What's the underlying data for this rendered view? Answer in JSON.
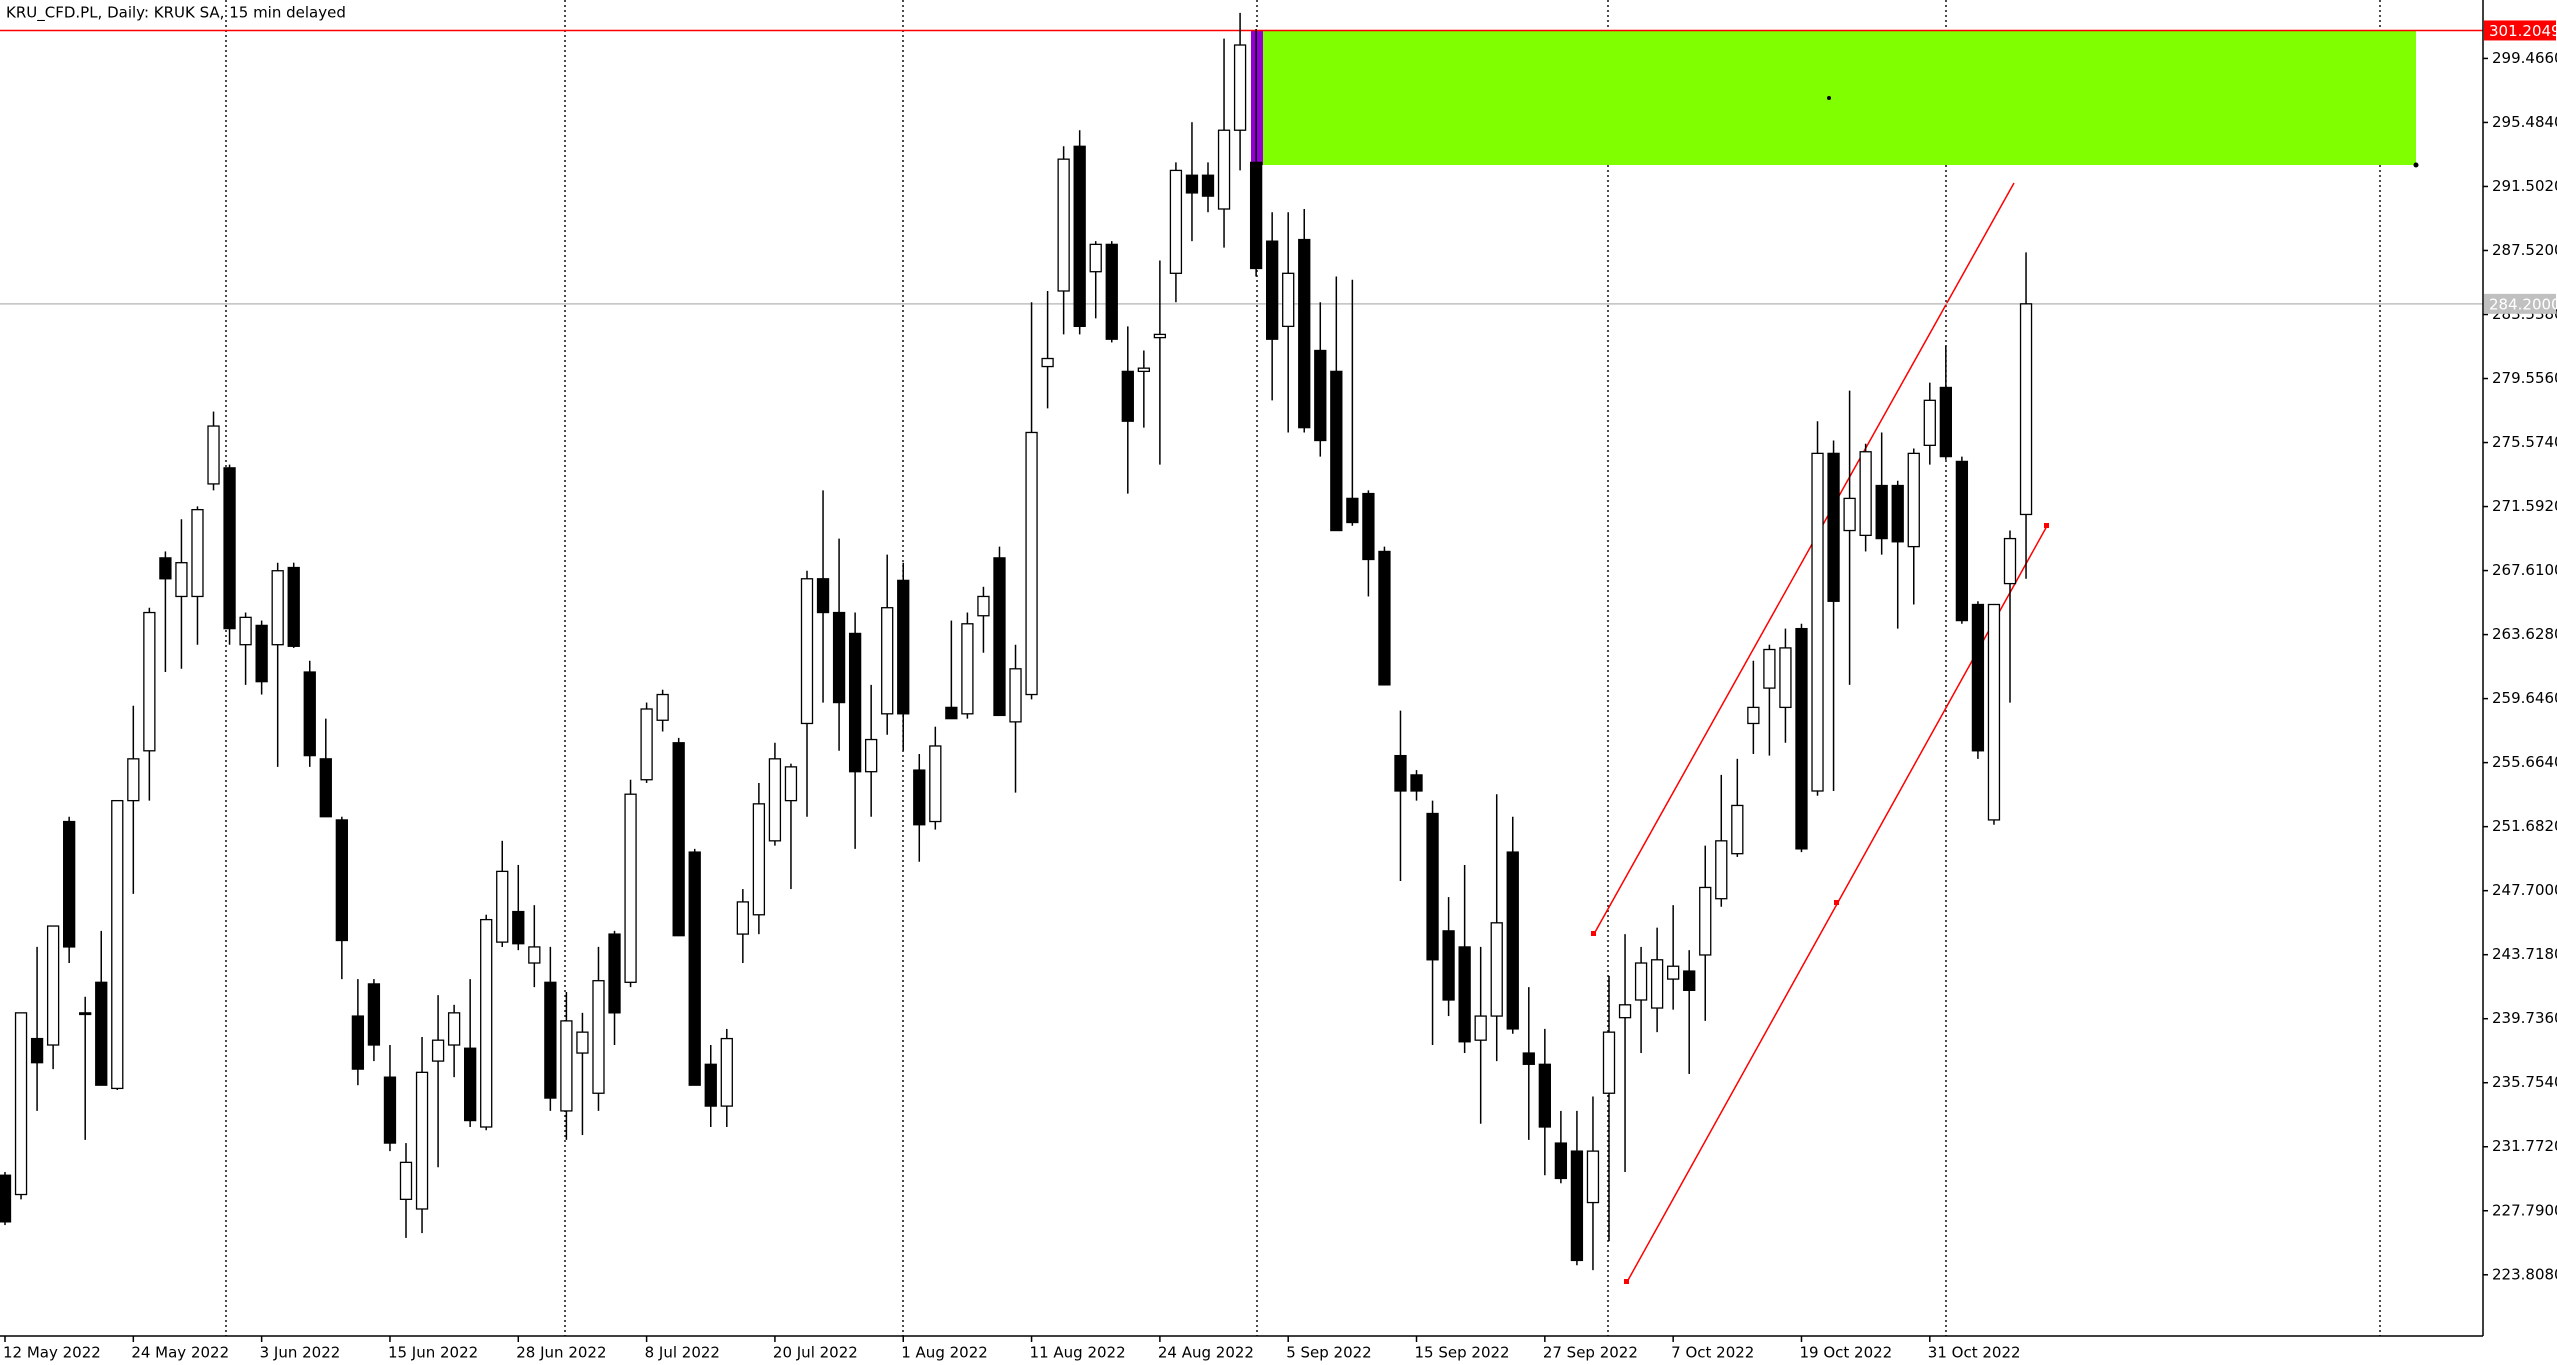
{
  "chart_data": {
    "type": "candlestick",
    "title": "KRU_CFD.PL, Daily:  KRUK SA, 15 min delayed",
    "up_color": "#ffffff",
    "down_color": "#000000",
    "categories": [
      "12 May 2022",
      null,
      null,
      null,
      null,
      null,
      null,
      null,
      "24 May 2022",
      null,
      null,
      null,
      null,
      null,
      null,
      null,
      "3 Jun 2022",
      null,
      null,
      null,
      null,
      null,
      null,
      null,
      "15 Jun 2022",
      null,
      null,
      null,
      null,
      null,
      null,
      null,
      "28 Jun 2022",
      null,
      null,
      null,
      null,
      null,
      null,
      null,
      "8 Jul 2022",
      null,
      null,
      null,
      null,
      null,
      null,
      null,
      "20 Jul 2022",
      null,
      null,
      null,
      null,
      null,
      null,
      null,
      "1 Aug 2022",
      null,
      null,
      null,
      null,
      null,
      null,
      null,
      "11 Aug 2022",
      null,
      null,
      null,
      null,
      null,
      null,
      null,
      "24 Aug 2022",
      null,
      null,
      null,
      null,
      null,
      null,
      null,
      "5 Sep 2022",
      null,
      null,
      null,
      null,
      null,
      null,
      null,
      "15 Sep 2022",
      null,
      null,
      null,
      null,
      null,
      null,
      null,
      "27 Sep 2022",
      null,
      null,
      null,
      null,
      null,
      null,
      null,
      "7 Oct 2022",
      null,
      null,
      null,
      null,
      null,
      null,
      null,
      "19 Oct 2022",
      null,
      null,
      null,
      null,
      null,
      null,
      null,
      "31 Oct 2022",
      null,
      null,
      null,
      null,
      null,
      null
    ],
    "open": [
      230.0,
      228.8,
      238.5,
      238.1,
      252.0,
      240.1,
      242.0,
      235.4,
      253.3,
      256.4,
      268.4,
      266.0,
      266.0,
      273.0,
      274.0,
      263.0,
      264.2,
      263.0,
      267.8,
      261.3,
      255.9,
      252.1,
      239.9,
      241.9,
      236.1,
      228.5,
      227.9,
      237.1,
      238.1,
      237.9,
      233.0,
      244.5,
      246.4,
      243.2,
      242.0,
      234.0,
      237.6,
      235.1,
      245.0,
      242.0,
      254.6,
      258.3,
      256.9,
      250.1,
      236.9,
      234.3,
      245.0,
      246.2,
      250.8,
      253.3,
      258.1,
      267.1,
      265.0,
      263.7,
      255.1,
      258.7,
      267.0,
      255.2,
      252.0,
      259.1,
      258.7,
      264.8,
      268.4,
      258.2,
      259.9,
      280.3,
      285.0,
      294.0,
      286.2,
      287.9,
      280.0,
      280.0,
      282.1,
      286.1,
      292.2,
      292.2,
      290.1,
      295.0,
      293.0,
      288.1,
      282.8,
      288.2,
      281.3,
      280.0,
      272.1,
      272.4,
      268.8,
      256.1,
      254.9,
      252.5,
      245.2,
      244.2,
      238.4,
      239.9,
      250.1,
      237.6,
      236.9,
      232.0,
      231.5,
      228.3,
      235.1,
      239.8,
      240.9,
      240.4,
      242.2,
      242.7,
      243.7,
      247.2,
      250.0,
      258.1,
      260.3,
      259.1,
      264.0,
      253.9,
      274.9,
      270.1,
      269.8,
      272.9,
      272.9,
      269.1,
      275.4,
      279.0,
      274.4,
      265.5,
      252.1,
      266.8,
      271.1
    ],
    "high": [
      230.2,
      240.1,
      244.2,
      245.2,
      252.3,
      241.1,
      245.2,
      253.3,
      259.2,
      265.3,
      268.8,
      270.8,
      271.6,
      277.5,
      274.2,
      265.0,
      264.5,
      268.1,
      268.1,
      262.0,
      258.4,
      252.3,
      242.2,
      242.2,
      238.1,
      232.0,
      238.6,
      241.2,
      240.6,
      242.2,
      246.2,
      250.8,
      249.3,
      246.8,
      244.2,
      241.4,
      240.1,
      244.2,
      245.2,
      254.6,
      259.4,
      260.2,
      257.2,
      250.3,
      238.1,
      239.1,
      247.8,
      254.4,
      256.9,
      255.6,
      267.6,
      272.6,
      269.6,
      265.0,
      260.5,
      268.6,
      268.1,
      256.2,
      257.9,
      264.5,
      265.0,
      266.6,
      269.1,
      263.0,
      284.3,
      285.0,
      294.0,
      295.0,
      288.1,
      288.1,
      282.8,
      281.3,
      286.9,
      293.0,
      295.5,
      293.0,
      300.7,
      302.3,
      301.3,
      289.9,
      289.9,
      290.1,
      284.3,
      285.9,
      285.7,
      272.6,
      269.1,
      258.9,
      255.2,
      253.3,
      247.3,
      249.3,
      244.2,
      253.7,
      252.3,
      241.7,
      239.1,
      234.0,
      234.0,
      234.9,
      242.4,
      245.0,
      244.2,
      245.4,
      246.8,
      244.0,
      250.5,
      254.9,
      255.9,
      262.0,
      263.0,
      264.0,
      264.3,
      276.9,
      275.7,
      278.8,
      275.5,
      276.2,
      273.2,
      275.2,
      279.3,
      281.6,
      274.7,
      265.7,
      265.5,
      270.1,
      287.4
    ],
    "low": [
      226.9,
      228.5,
      234.0,
      236.6,
      243.2,
      232.2,
      235.6,
      235.3,
      247.5,
      253.3,
      261.3,
      261.5,
      263.0,
      272.6,
      263.0,
      260.5,
      259.9,
      255.4,
      262.8,
      255.4,
      252.3,
      242.2,
      235.6,
      237.1,
      231.5,
      226.1,
      226.4,
      230.5,
      236.1,
      233.0,
      232.8,
      244.2,
      244.0,
      241.7,
      234.0,
      232.2,
      232.5,
      234.0,
      238.1,
      241.7,
      254.4,
      257.6,
      244.9,
      235.6,
      233.0,
      233.0,
      243.2,
      245.0,
      250.5,
      247.8,
      252.3,
      259.4,
      256.4,
      250.3,
      252.3,
      257.4,
      256.4,
      249.5,
      251.5,
      258.4,
      258.4,
      262.5,
      258.6,
      253.8,
      259.6,
      277.7,
      282.3,
      282.3,
      283.3,
      281.8,
      272.4,
      276.5,
      274.2,
      284.3,
      288.1,
      289.9,
      287.7,
      292.5,
      285.9,
      278.2,
      276.2,
      276.2,
      274.7,
      270.1,
      270.4,
      266.0,
      260.5,
      248.3,
      253.3,
      238.1,
      239.9,
      237.6,
      233.2,
      237.1,
      238.8,
      232.2,
      230.0,
      229.5,
      224.4,
      224.1,
      225.9,
      230.2,
      237.6,
      238.9,
      240.3,
      236.3,
      239.6,
      246.7,
      249.8,
      256.2,
      256.1,
      256.9,
      250.1,
      253.6,
      253.9,
      260.5,
      268.8,
      268.6,
      264.0,
      265.5,
      274.2,
      274.5,
      264.3,
      255.9,
      251.8,
      259.4,
      267.1
    ],
    "close": [
      227.1,
      240.1,
      237.0,
      245.5,
      244.2,
      240.0,
      235.6,
      253.3,
      255.9,
      265.0,
      267.1,
      268.1,
      271.4,
      276.6,
      264.0,
      264.7,
      260.7,
      267.6,
      262.9,
      256.1,
      252.3,
      244.6,
      236.6,
      238.1,
      232.0,
      230.8,
      236.4,
      238.4,
      240.1,
      233.4,
      245.9,
      248.9,
      244.4,
      244.2,
      234.8,
      239.6,
      238.9,
      242.1,
      240.1,
      253.7,
      259.0,
      259.9,
      244.9,
      235.6,
      234.3,
      238.5,
      247.0,
      253.1,
      255.9,
      255.4,
      267.1,
      265.0,
      259.4,
      255.1,
      257.1,
      265.3,
      258.7,
      251.8,
      256.7,
      258.4,
      264.3,
      266.0,
      258.6,
      261.5,
      276.2,
      280.8,
      293.2,
      282.8,
      287.9,
      282.0,
      276.9,
      280.2,
      282.3,
      292.5,
      291.1,
      290.9,
      295.0,
      300.3,
      286.4,
      282.0,
      286.1,
      276.5,
      275.7,
      270.1,
      270.6,
      268.3,
      260.5,
      253.9,
      253.9,
      243.4,
      240.9,
      238.3,
      239.9,
      245.7,
      239.1,
      236.9,
      233.0,
      229.8,
      224.7,
      231.5,
      238.9,
      240.6,
      243.2,
      243.4,
      243.0,
      241.5,
      247.9,
      250.8,
      253.0,
      259.1,
      262.7,
      262.8,
      250.3,
      274.9,
      265.7,
      272.1,
      275.0,
      269.6,
      269.4,
      274.9,
      278.2,
      274.7,
      264.5,
      256.4,
      265.5,
      269.6,
      284.2
    ],
    "ylim": [
      220.0,
      303.1
    ],
    "yticks": [
      {
        "value": 299.466,
        "label": "299.4660"
      },
      {
        "value": 295.484,
        "label": "295.4840"
      },
      {
        "value": 291.502,
        "label": "291.5020"
      },
      {
        "value": 287.52,
        "label": "287.5200"
      },
      {
        "value": 283.538,
        "label": "283.5380"
      },
      {
        "value": 279.556,
        "label": "279.5560"
      },
      {
        "value": 275.574,
        "label": "275.5740"
      },
      {
        "value": 271.592,
        "label": "271.5920"
      },
      {
        "value": 267.61,
        "label": "267.6100"
      },
      {
        "value": 263.628,
        "label": "263.6280"
      },
      {
        "value": 259.646,
        "label": "259.6460"
      },
      {
        "value": 255.664,
        "label": "255.6640"
      },
      {
        "value": 251.682,
        "label": "251.6820"
      },
      {
        "value": 247.7,
        "label": "247.7000"
      },
      {
        "value": 243.718,
        "label": "243.7180"
      },
      {
        "value": 239.736,
        "label": "239.7360"
      },
      {
        "value": 235.754,
        "label": "235.7540"
      },
      {
        "value": 231.772,
        "label": "231.7720"
      },
      {
        "value": 227.79,
        "label": "227.7900"
      },
      {
        "value": 223.808,
        "label": "223.8080"
      }
    ],
    "price_lines": [
      {
        "value": 301.2049,
        "label": "301.2049",
        "color": "#ff0000"
      },
      {
        "value": 284.2,
        "label": "284.2000",
        "color": "#c0c0c0"
      }
    ]
  }
}
